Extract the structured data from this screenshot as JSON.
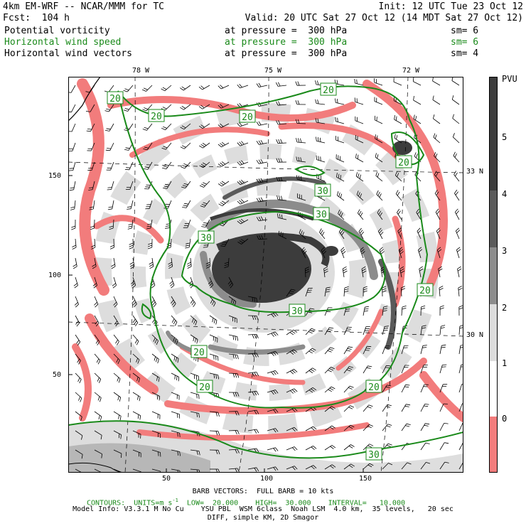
{
  "header": {
    "model": "4km EM-WRF -- NCAR/MMM for TC",
    "init": "Init: 12 UTC Tue 23 Oct 12",
    "fcst": "Fcst:  104 h",
    "valid": "Valid: 20 UTC Sat 27 Oct 12 (14 MDT Sat 27 Oct 12)"
  },
  "fields": [
    {
      "name": "Potential vorticity",
      "pressure": "at pressure =  300 hPa",
      "sm": "sm= 6",
      "color": "#000000"
    },
    {
      "name": "Horizontal wind speed",
      "pressure": "at pressure =  300 hPa",
      "sm": "sm= 6",
      "color": "#1a8a1a"
    },
    {
      "name": "Horizontal wind vectors",
      "pressure": "at pressure =  300 hPa",
      "sm": "sm= 4",
      "color": "#000000"
    }
  ],
  "map": {
    "lon_labels": [
      "78 W",
      "75 W",
      "72 W"
    ],
    "lat_labels": [
      "33 N",
      "30 N"
    ],
    "y_ticks": [
      "150",
      "100",
      "50"
    ],
    "x_ticks": [
      "50",
      "100",
      "150"
    ],
    "contour_labels": [
      "20",
      "20",
      "20",
      "20",
      "20",
      "20",
      "20",
      "20",
      "20",
      "30",
      "30",
      "30",
      "30",
      "30"
    ],
    "colors": {
      "pv_low": "#f27c7c",
      "grey1": "#dcdcdc",
      "grey2": "#b4b4b4",
      "grey3": "#8c8c8c",
      "pv_high": "#3c3c3c",
      "contour": "#1a8a1a"
    }
  },
  "colorbar": {
    "unit": "PVU",
    "labels": [
      "5",
      "4",
      "3",
      "2",
      "1",
      "0"
    ]
  },
  "footer": {
    "barb": "BARB VECTORS:  FULL BARB = 10 kts",
    "contours": "CONTOURS:  UNITS=m s",
    "low": "LOW=  20.000",
    "high": "HIGH=  30.000",
    "interval": "INTERVAL=   10.000",
    "model_info": "Model Info: V3.3.1 M No Cu    YSU PBL  WSM 6class  Noah LSM  4.0 km,  35 levels,   20 sec",
    "diff": "DIFF, simple KM, 2D Smagor"
  }
}
